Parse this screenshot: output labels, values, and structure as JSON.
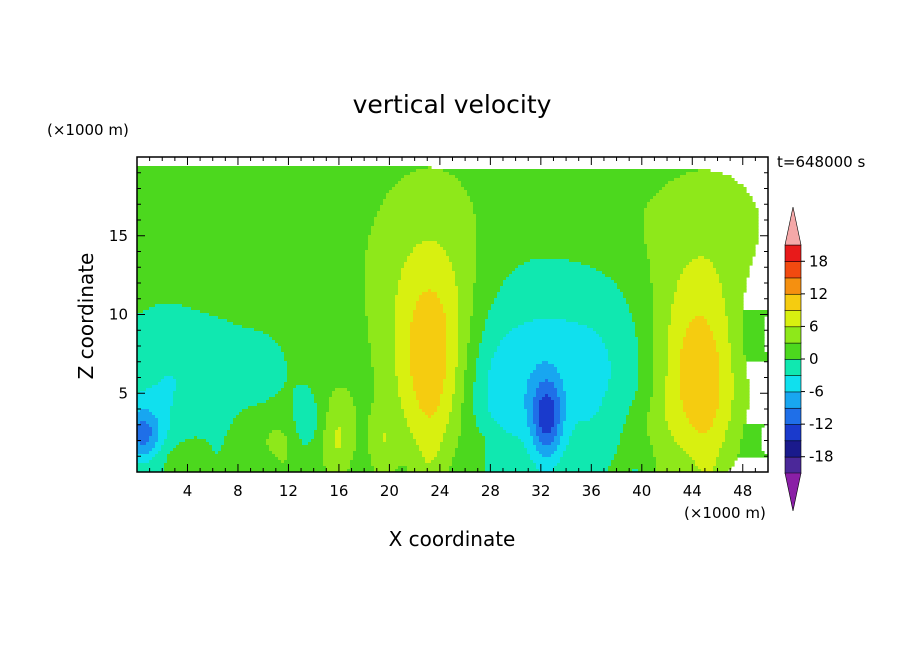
{
  "chart_data": {
    "type": "heatmap",
    "title": "vertical velocity",
    "xlabel": "X coordinate",
    "ylabel": "Z coordinate",
    "x_unit": "(×1000 m)",
    "y_unit": "(×1000 m)",
    "time_label": "t=648000 s",
    "xlim": [
      0,
      50
    ],
    "ylim": [
      0,
      20
    ],
    "x_ticks": [
      "4",
      "8",
      "12",
      "16",
      "20",
      "24",
      "28",
      "32",
      "36",
      "40",
      "44",
      "48"
    ],
    "y_ticks": [
      "5",
      "10",
      "15"
    ],
    "colorbar": {
      "levels": [
        -21,
        -18,
        -15,
        -12,
        -9,
        -6,
        -3,
        0,
        3,
        6,
        9,
        12,
        15,
        18,
        21
      ],
      "tick_labels": [
        "18",
        "12",
        "6",
        "0",
        "-6",
        "-12",
        "-18"
      ],
      "colors": [
        "#8a1fa6",
        "#4b2899",
        "#1a1a8c",
        "#1a3acc",
        "#1f6fe8",
        "#18a6f0",
        "#10e0ee",
        "#10e8b0",
        "#4cd81e",
        "#8ee81a",
        "#d8f010",
        "#f5cc10",
        "#f59010",
        "#f24a10",
        "#e81a1a",
        "#f5a8a8"
      ]
    },
    "background_value": 1.5,
    "features": [
      {
        "name": "updraft core near x=23.5 km",
        "x": 23.5,
        "z": 6.0,
        "w_max": 9
      },
      {
        "name": "updraft core near x=44.5 km",
        "x": 44.5,
        "z": 5.0,
        "w_max": 9
      },
      {
        "name": "downdraft near x=32.5 km",
        "x": 32.5,
        "z": 3.5,
        "w_min": -9
      },
      {
        "name": "downdraft near x=0.5 km",
        "x": 0.5,
        "z": 2.3,
        "w_min": -9
      }
    ]
  }
}
